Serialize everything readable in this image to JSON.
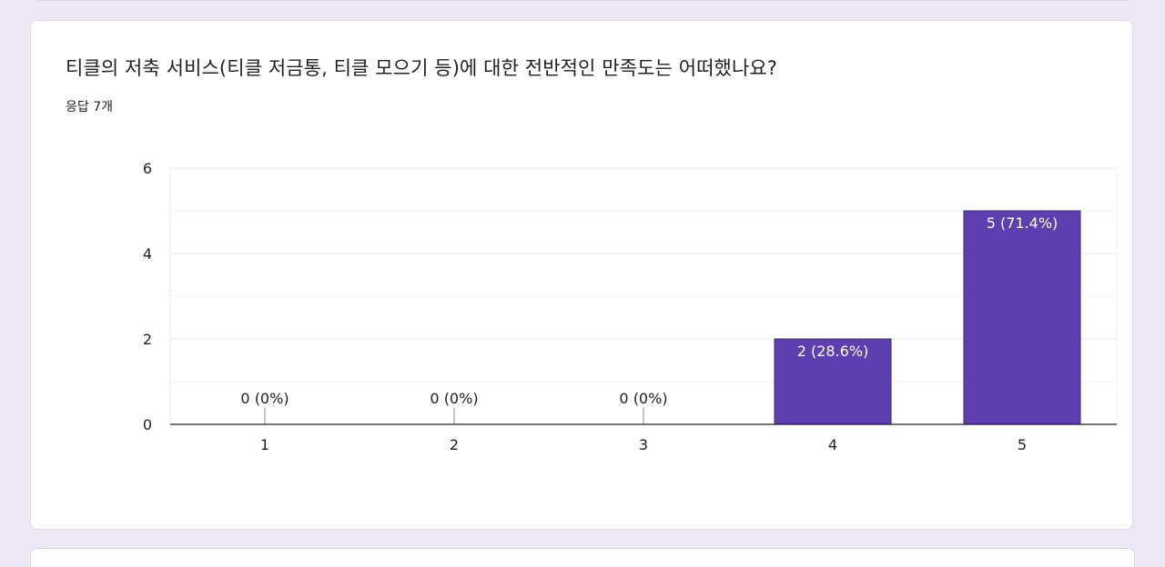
{
  "question": {
    "title": "티클의 저축 서비스(티클 저금통, 티클 모으기 등)에 대한 전반적인 만족도는 어떠했나요?",
    "response_count": "응답 7개"
  },
  "colors": {
    "bar": "#5e3fb0",
    "bar_stroke": "#3f2a80",
    "background": "#ede7f6",
    "card": "#ffffff",
    "gridline": "#e8e8e8",
    "axis": "#202124"
  },
  "chart_data": {
    "type": "bar",
    "categories": [
      "1",
      "2",
      "3",
      "4",
      "5"
    ],
    "values": [
      0,
      0,
      0,
      2,
      5
    ],
    "data_labels": [
      "0 (0%)",
      "0 (0%)",
      "0 (0%)",
      "2 (28.6%)",
      "5 (71.4%)"
    ],
    "yticks": [
      0,
      2,
      4,
      6
    ],
    "ylim": [
      0,
      6
    ],
    "minor_gridlines": [
      1,
      3,
      5
    ],
    "grid": true,
    "title": "",
    "xlabel": "",
    "ylabel": ""
  }
}
